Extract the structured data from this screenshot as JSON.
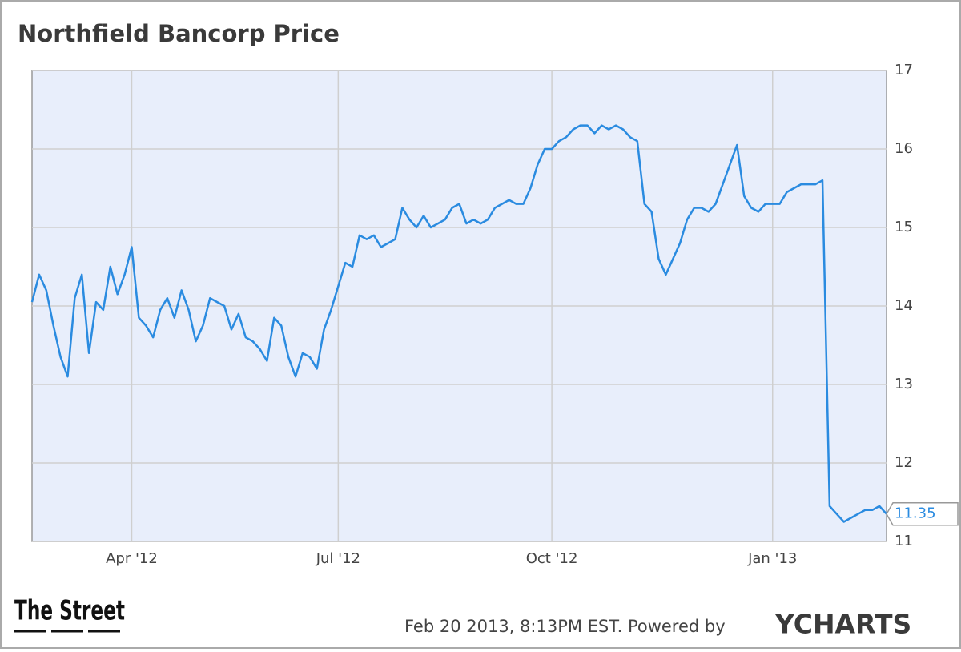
{
  "chart_data": {
    "type": "line",
    "title": "Northfield Bancorp Price",
    "logo": "The Street",
    "footer": "Feb 20 2013, 8:13PM EST. Powered by",
    "brand": "YCHARTS",
    "categories": [
      null,
      null,
      null,
      null,
      null,
      null,
      null,
      null,
      null,
      null,
      null,
      null,
      null,
      null,
      "Apr '12",
      null,
      null,
      null,
      null,
      null,
      null,
      null,
      null,
      null,
      null,
      null,
      null,
      null,
      null,
      null,
      null,
      null,
      null,
      null,
      null,
      null,
      null,
      null,
      null,
      null,
      null,
      null,
      null,
      "Jul '12",
      null,
      null,
      null,
      null,
      null,
      null,
      null,
      null,
      null,
      null,
      null,
      null,
      null,
      null,
      null,
      null,
      null,
      null,
      null,
      null,
      null,
      null,
      null,
      null,
      null,
      null,
      null,
      null,
      null,
      "Oct '12",
      null,
      null,
      null,
      null,
      null,
      null,
      null,
      null,
      null,
      null,
      null,
      null,
      null,
      null,
      null,
      null,
      null,
      null,
      null,
      null,
      null,
      null,
      null,
      null,
      null,
      null,
      null,
      null,
      null,
      null,
      "Jan '13",
      null,
      null,
      null,
      null,
      null,
      null,
      null,
      null,
      null,
      null,
      null,
      null,
      null,
      null,
      null,
      null
    ],
    "series": [
      {
        "name": "Northfield Bancorp Price",
        "color": "#2a8be0",
        "values": [
          14.05,
          14.4,
          14.2,
          13.75,
          13.35,
          13.1,
          14.1,
          14.4,
          13.4,
          14.05,
          13.95,
          14.5,
          14.15,
          14.4,
          14.75,
          13.85,
          13.75,
          13.6,
          13.95,
          14.1,
          13.85,
          14.2,
          13.95,
          13.55,
          13.75,
          14.1,
          14.05,
          14.0,
          13.7,
          13.9,
          13.6,
          13.55,
          13.45,
          13.3,
          13.85,
          13.75,
          13.35,
          13.1,
          13.4,
          13.35,
          13.2,
          13.7,
          13.95,
          14.25,
          14.55,
          14.5,
          14.9,
          14.85,
          14.9,
          14.75,
          14.8,
          14.85,
          15.25,
          15.1,
          15.0,
          15.15,
          15.0,
          15.05,
          15.1,
          15.25,
          15.3,
          15.05,
          15.1,
          15.05,
          15.1,
          15.25,
          15.3,
          15.35,
          15.3,
          15.3,
          15.5,
          15.8,
          16.0,
          16.0,
          16.1,
          16.15,
          16.25,
          16.3,
          16.3,
          16.2,
          16.3,
          16.25,
          16.3,
          16.25,
          16.15,
          16.1,
          15.3,
          15.2,
          14.6,
          14.4,
          14.6,
          14.8,
          15.1,
          15.25,
          15.25,
          15.2,
          15.3,
          15.55,
          15.8,
          16.05,
          15.4,
          15.25,
          15.2,
          15.3,
          15.3,
          15.3,
          15.45,
          15.5,
          15.55,
          15.55,
          15.55,
          15.6,
          11.45,
          11.35,
          11.25,
          11.3,
          11.35,
          11.4,
          11.4,
          11.45,
          11.35
        ]
      }
    ],
    "ylim": [
      11,
      17
    ],
    "yticks": [
      11,
      12,
      13,
      14,
      15,
      16,
      17
    ],
    "grid": true
  }
}
